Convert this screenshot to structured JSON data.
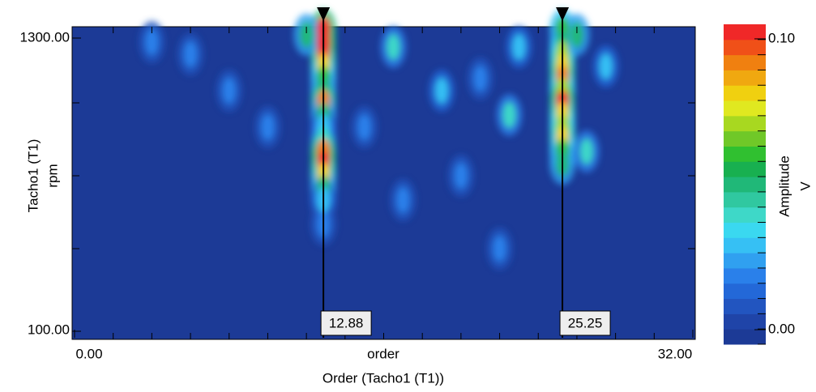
{
  "chart_data": {
    "type": "heatmap",
    "xlabel": "Order (Tacho1 (T1))",
    "xaxis_text": "order",
    "ylabel": "Tacho1 (T1)",
    "yunit": "rpm",
    "xlim": [
      0,
      32
    ],
    "ylim": [
      100,
      1300
    ],
    "xticks": [
      {
        "value": 0,
        "label": "0.00"
      },
      {
        "value": 32,
        "label": "32.00"
      }
    ],
    "yticks": [
      {
        "value": 100,
        "label": "100.00"
      },
      {
        "value": 1300,
        "label": "1300.00"
      }
    ],
    "xminorticks": [
      2,
      4,
      6,
      8,
      10,
      12,
      14,
      16,
      18,
      20,
      22,
      24,
      26,
      28,
      30
    ],
    "yminorticks": [
      400,
      700,
      1000
    ],
    "colorbar": {
      "label": "Amplitude",
      "unit": "V",
      "zlim": [
        -0.005,
        0.105
      ],
      "ticks": [
        {
          "value": 0,
          "label": "0.00"
        },
        {
          "value": 0.1,
          "label": "0.10"
        }
      ]
    },
    "colormap": [
      "#1c3a96",
      "#1f44a8",
      "#2255c0",
      "#2368d8",
      "#2a80ea",
      "#30a0f0",
      "#36c0f4",
      "#3ad8f0",
      "#3ed8c8",
      "#30c8a0",
      "#20b878",
      "#18b050",
      "#30c030",
      "#70c828",
      "#a8d820",
      "#e0e820",
      "#f0d010",
      "#f0a810",
      "#f08010",
      "#f05018",
      "#f02828"
    ],
    "cursors": [
      12.88,
      25.25
    ],
    "points": [
      {
        "x": 12.88,
        "y": 1300,
        "z": 0.1
      },
      {
        "x": 12.88,
        "y": 1250,
        "z": 0.1
      },
      {
        "x": 12.88,
        "y": 1200,
        "z": 0.1
      },
      {
        "x": 12.88,
        "y": 1150,
        "z": 0.08
      },
      {
        "x": 12.88,
        "y": 1100,
        "z": 0.06
      },
      {
        "x": 12.88,
        "y": 1050,
        "z": 0.05
      },
      {
        "x": 12.88,
        "y": 1000,
        "z": 0.09
      },
      {
        "x": 12.88,
        "y": 950,
        "z": 0.05
      },
      {
        "x": 12.88,
        "y": 900,
        "z": 0.03
      },
      {
        "x": 12.88,
        "y": 850,
        "z": 0.04
      },
      {
        "x": 12.88,
        "y": 800,
        "z": 0.09
      },
      {
        "x": 12.88,
        "y": 750,
        "z": 0.1
      },
      {
        "x": 12.88,
        "y": 700,
        "z": 0.08
      },
      {
        "x": 12.88,
        "y": 650,
        "z": 0.05
      },
      {
        "x": 12.88,
        "y": 600,
        "z": 0.03
      },
      {
        "x": 12.88,
        "y": 500,
        "z": 0.02
      },
      {
        "x": 25.25,
        "y": 1300,
        "z": 0.06
      },
      {
        "x": 25.25,
        "y": 1250,
        "z": 0.05
      },
      {
        "x": 25.25,
        "y": 1200,
        "z": 0.07
      },
      {
        "x": 25.25,
        "y": 1150,
        "z": 0.08
      },
      {
        "x": 25.25,
        "y": 1100,
        "z": 0.09
      },
      {
        "x": 25.25,
        "y": 1050,
        "z": 0.07
      },
      {
        "x": 25.25,
        "y": 1000,
        "z": 0.1
      },
      {
        "x": 25.25,
        "y": 950,
        "z": 0.08
      },
      {
        "x": 25.25,
        "y": 900,
        "z": 0.07
      },
      {
        "x": 25.25,
        "y": 850,
        "z": 0.08
      },
      {
        "x": 25.25,
        "y": 800,
        "z": 0.06
      },
      {
        "x": 25.25,
        "y": 750,
        "z": 0.05
      },
      {
        "x": 12,
        "y": 1280,
        "z": 0.05
      },
      {
        "x": 16.5,
        "y": 1230,
        "z": 0.04
      },
      {
        "x": 22.5,
        "y": 950,
        "z": 0.04
      },
      {
        "x": 23,
        "y": 1230,
        "z": 0.03
      },
      {
        "x": 26,
        "y": 1280,
        "z": 0.05
      },
      {
        "x": 26.5,
        "y": 800,
        "z": 0.04
      },
      {
        "x": 17,
        "y": 600,
        "z": 0.02
      },
      {
        "x": 20,
        "y": 700,
        "z": 0.02
      },
      {
        "x": 10,
        "y": 900,
        "z": 0.02
      },
      {
        "x": 8,
        "y": 1050,
        "z": 0.02
      },
      {
        "x": 6,
        "y": 1200,
        "z": 0.02
      },
      {
        "x": 19,
        "y": 1050,
        "z": 0.03
      },
      {
        "x": 21,
        "y": 1100,
        "z": 0.02
      },
      {
        "x": 27.5,
        "y": 1150,
        "z": 0.03
      },
      {
        "x": 22,
        "y": 400,
        "z": 0.02
      },
      {
        "x": 15,
        "y": 900,
        "z": 0.02
      },
      {
        "x": 4,
        "y": 1250,
        "z": 0.02
      }
    ]
  }
}
